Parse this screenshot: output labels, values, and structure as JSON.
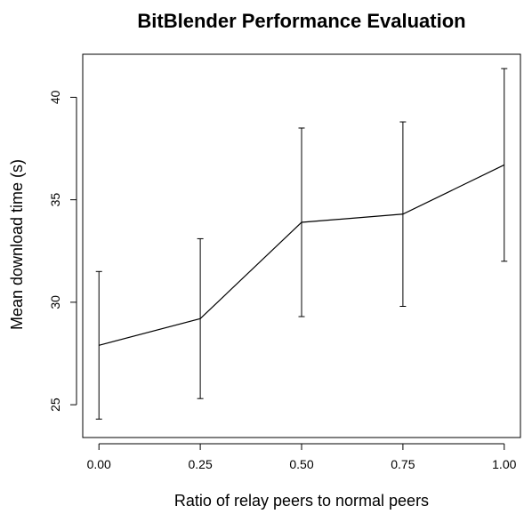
{
  "chart_data": {
    "type": "line",
    "title": "BitBlender Performance Evaluation",
    "xlabel": "Ratio of relay peers to normal peers",
    "ylabel": "Mean download time (s)",
    "xlim": [
      -0.04,
      1.04
    ],
    "ylim": [
      23.4,
      42.1
    ],
    "x_ticks": [
      0.0,
      0.25,
      0.5,
      0.75,
      1.0
    ],
    "x_tick_labels": [
      "0.00",
      "0.25",
      "0.50",
      "0.75",
      "1.00"
    ],
    "y_ticks": [
      25,
      30,
      35,
      40
    ],
    "y_tick_labels": [
      "25",
      "30",
      "35",
      "40"
    ],
    "grid": false,
    "series": [
      {
        "x": [
          0.0,
          0.25,
          0.5,
          0.75,
          1.0
        ],
        "y": [
          27.9,
          29.2,
          33.9,
          34.3,
          36.7
        ],
        "error_low": [
          24.3,
          25.3,
          29.3,
          29.8,
          32.0
        ],
        "error_high": [
          31.5,
          33.1,
          38.5,
          38.8,
          41.4
        ]
      }
    ],
    "colors": {
      "line": "#000000",
      "axis": "#000000"
    }
  }
}
